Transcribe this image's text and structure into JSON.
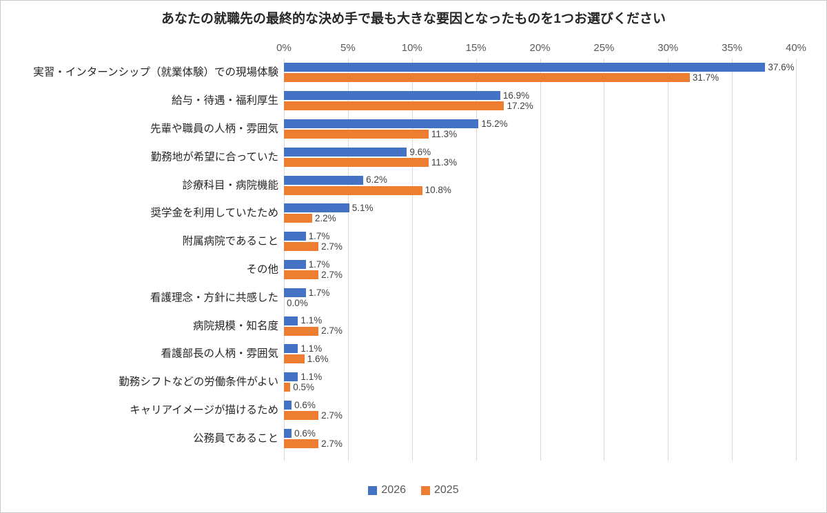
{
  "title": "あなたの就職先の最終的な決め手で最も大きな要因となったものを1つお選びください",
  "chart_data": {
    "type": "bar",
    "orientation": "horizontal",
    "title": "あなたの就職先の最終的な決め手で最も大きな要因となったものを1つお選びください",
    "xlabel": "",
    "ylabel": "",
    "xlim": [
      0,
      40
    ],
    "x_ticks": [
      "0%",
      "5%",
      "10%",
      "15%",
      "20%",
      "25%",
      "30%",
      "35%",
      "40%"
    ],
    "grid": true,
    "legend_position": "bottom",
    "categories": [
      "実習・インターンシップ（就業体験）での現場体験",
      "給与・待遇・福利厚生",
      "先輩や職員の人柄・雰囲気",
      "勤務地が希望に合っていた",
      "診療科目・病院機能",
      "奨学金を利用していたため",
      "附属病院であること",
      "その他",
      "看護理念・方針に共感した",
      "病院規模・知名度",
      "看護部長の人柄・雰囲気",
      "勤務シフトなどの労働条件がよい",
      "キャリアイメージが描けるため",
      "公務員であること"
    ],
    "series": [
      {
        "name": "2026",
        "color": "#4472C4",
        "values": [
          37.6,
          16.9,
          15.2,
          9.6,
          6.2,
          5.1,
          1.7,
          1.7,
          1.7,
          1.1,
          1.1,
          1.1,
          0.6,
          0.6
        ],
        "labels": [
          "37.6%",
          "16.9%",
          "15.2%",
          "9.6%",
          "6.2%",
          "5.1%",
          "1.7%",
          "1.7%",
          "1.7%",
          "1.1%",
          "1.1%",
          "1.1%",
          "0.6%",
          "0.6%"
        ]
      },
      {
        "name": "2025",
        "color": "#ED7D31",
        "values": [
          31.7,
          17.2,
          11.3,
          11.3,
          10.8,
          2.2,
          2.7,
          2.7,
          0.0,
          2.7,
          1.6,
          0.5,
          2.7,
          2.7
        ],
        "labels": [
          "31.7%",
          "17.2%",
          "11.3%",
          "11.3%",
          "10.8%",
          "2.2%",
          "2.7%",
          "2.7%",
          "0.0%",
          "2.7%",
          "1.6%",
          "0.5%",
          "2.7%",
          "2.7%"
        ]
      }
    ]
  }
}
